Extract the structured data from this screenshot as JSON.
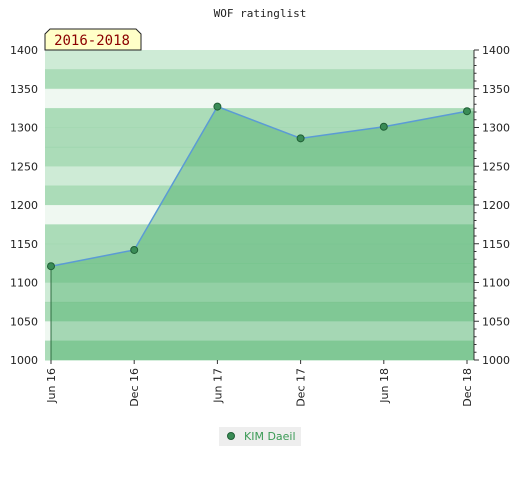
{
  "chart_data": {
    "type": "area",
    "title": "WOF ratinglist",
    "period_label": "2016-2018",
    "x": [
      "Jun 16",
      "Dec 16",
      "Jun 17",
      "Dec 17",
      "Jun 18",
      "Dec 18"
    ],
    "series": [
      {
        "name": "KIM Daeil",
        "values": [
          1121,
          1142,
          1327,
          1286,
          1301,
          1321
        ]
      }
    ],
    "ylim": [
      1000,
      1400
    ],
    "yticks": [
      1000,
      1050,
      1100,
      1150,
      1200,
      1250,
      1300,
      1350,
      1400
    ],
    "ytick_labels": [
      "1000",
      "1050",
      "1100",
      "1150",
      "1200",
      "1250",
      "1300",
      "1350",
      "1400"
    ],
    "grid": true,
    "legend_position": "bottom-center",
    "colors": {
      "line": "#5b9bd5",
      "marker_fill": "#3a8c56",
      "marker_stroke": "#1f5f35",
      "area_fill": "#4caf6a",
      "band_dark": "#8fd0a0",
      "band_light": "#e6f4ea"
    }
  }
}
